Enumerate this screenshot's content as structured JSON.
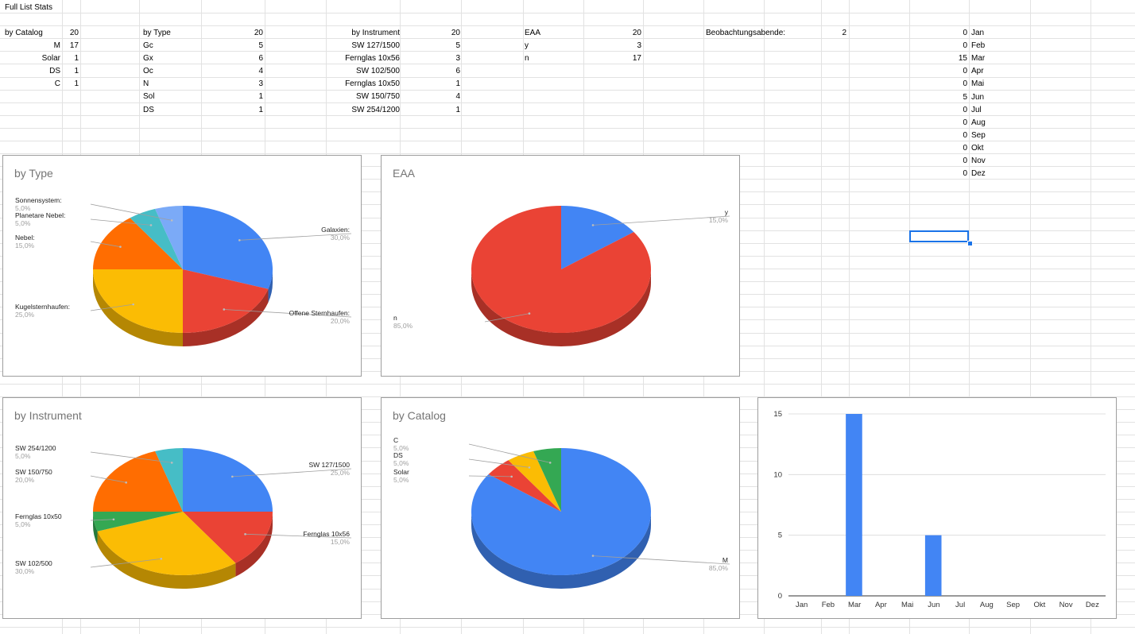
{
  "sheet": {
    "title": "Full List Stats",
    "by_catalog": {
      "label": "by Catalog",
      "total": "20",
      "rows": [
        {
          "k": "M",
          "v": "17"
        },
        {
          "k": "Solar",
          "v": "1"
        },
        {
          "k": "DS",
          "v": "1"
        },
        {
          "k": "C",
          "v": "1"
        }
      ]
    },
    "by_type": {
      "label": "by Type",
      "total": "20",
      "rows": [
        {
          "k": "Gc",
          "v": "5"
        },
        {
          "k": "Gx",
          "v": "6"
        },
        {
          "k": "Oc",
          "v": "4"
        },
        {
          "k": "N",
          "v": "3"
        },
        {
          "k": "Sol",
          "v": "1"
        },
        {
          "k": "DS",
          "v": "1"
        }
      ]
    },
    "by_instrument": {
      "label": "by Instrument",
      "total": "20",
      "rows": [
        {
          "k": "SW 127/1500",
          "v": "5"
        },
        {
          "k": "Fernglas 10x56",
          "v": "3"
        },
        {
          "k": "SW 102/500",
          "v": "6"
        },
        {
          "k": "Fernglas 10x50",
          "v": "1"
        },
        {
          "k": "SW 150/750",
          "v": "4"
        },
        {
          "k": "SW 254/1200",
          "v": "1"
        }
      ]
    },
    "eaa": {
      "label": "EAA",
      "total": "20",
      "rows": [
        {
          "k": "y",
          "v": "3"
        },
        {
          "k": "n",
          "v": "17"
        }
      ]
    },
    "beob": {
      "label": "Beobachtungsabende:",
      "value": "2"
    },
    "months": [
      {
        "v": "0",
        "m": "Jan"
      },
      {
        "v": "0",
        "m": "Feb"
      },
      {
        "v": "15",
        "m": "Mar"
      },
      {
        "v": "0",
        "m": "Apr"
      },
      {
        "v": "0",
        "m": "Mai"
      },
      {
        "v": "5",
        "m": "Jun"
      },
      {
        "v": "0",
        "m": "Jul"
      },
      {
        "v": "0",
        "m": "Aug"
      },
      {
        "v": "0",
        "m": "Sep"
      },
      {
        "v": "0",
        "m": "Okt"
      },
      {
        "v": "0",
        "m": "Nov"
      },
      {
        "v": "0",
        "m": "Dez"
      }
    ]
  },
  "chart_data": [
    {
      "type": "pie",
      "title": "by Type",
      "slices": [
        {
          "name": "Galaxien:",
          "value": 30,
          "pct": "30,0%",
          "color": "#4285f4"
        },
        {
          "name": "Offene Sternhaufen:",
          "value": 20,
          "pct": "20,0%",
          "color": "#ea4335"
        },
        {
          "name": "Kugelsternhaufen:",
          "value": 25,
          "pct": "25,0%",
          "color": "#fbbc04"
        },
        {
          "name": "Nebel:",
          "value": 15,
          "pct": "15,0%",
          "color": "#ff6d01"
        },
        {
          "name": "Planetare Nebel:",
          "value": 5,
          "pct": "5,0%",
          "color": "#46bdc6"
        },
        {
          "name": "Sonnensystem:",
          "value": 5,
          "pct": "5,0%",
          "color": "#7baaf7"
        }
      ]
    },
    {
      "type": "pie",
      "title": "EAA",
      "slices": [
        {
          "name": "y",
          "value": 15,
          "pct": "15,0%",
          "color": "#4285f4"
        },
        {
          "name": "n",
          "value": 85,
          "pct": "85,0%",
          "color": "#ea4335"
        }
      ]
    },
    {
      "type": "pie",
      "title": "by Instrument",
      "slices": [
        {
          "name": "SW 127/1500",
          "value": 25,
          "pct": "25,0%",
          "color": "#4285f4"
        },
        {
          "name": "Fernglas 10x56",
          "value": 15,
          "pct": "15,0%",
          "color": "#ea4335"
        },
        {
          "name": "SW 102/500",
          "value": 30,
          "pct": "30,0%",
          "color": "#fbbc04"
        },
        {
          "name": "Fernglas 10x50",
          "value": 5,
          "pct": "5,0%",
          "color": "#34a853"
        },
        {
          "name": "SW 150/750",
          "value": 20,
          "pct": "20,0%",
          "color": "#ff6d01"
        },
        {
          "name": "SW 254/1200",
          "value": 5,
          "pct": "5,0%",
          "color": "#46bdc6"
        }
      ]
    },
    {
      "type": "pie",
      "title": "by Catalog",
      "slices": [
        {
          "name": "M",
          "value": 85,
          "pct": "85,0%",
          "color": "#4285f4"
        },
        {
          "name": "Solar",
          "value": 5,
          "pct": "5,0%",
          "color": "#ea4335"
        },
        {
          "name": "DS",
          "value": 5,
          "pct": "5,0%",
          "color": "#fbbc04"
        },
        {
          "name": "C",
          "value": 5,
          "pct": "5,0%",
          "color": "#34a853"
        }
      ]
    },
    {
      "type": "bar",
      "title": "",
      "categories": [
        "Jan",
        "Feb",
        "Mar",
        "Apr",
        "Mai",
        "Jun",
        "Jul",
        "Aug",
        "Sep",
        "Okt",
        "Nov",
        "Dez"
      ],
      "values": [
        0,
        0,
        15,
        0,
        0,
        5,
        0,
        0,
        0,
        0,
        0,
        0
      ],
      "yticks": [
        "0",
        "5",
        "10",
        "15"
      ],
      "ylim": [
        0,
        15
      ],
      "grid": true,
      "color": "#4285f4"
    }
  ]
}
